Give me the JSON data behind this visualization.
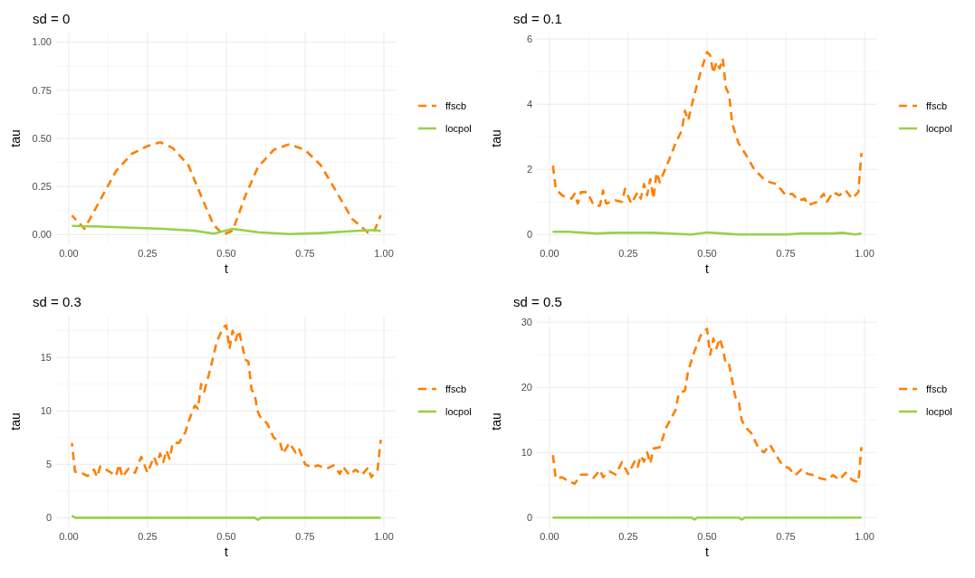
{
  "chart_data": [
    {
      "type": "line",
      "title": "sd = 0",
      "xlabel": "t",
      "ylabel": "tau",
      "xlim": [
        -0.04,
        1.04
      ],
      "ylim": [
        -0.05,
        1.05
      ],
      "xticks": [
        {
          "value": 0,
          "label": "0.00"
        },
        {
          "value": 0.25,
          "label": "0.25"
        },
        {
          "value": 0.5,
          "label": "0.50"
        },
        {
          "value": 0.75,
          "label": "0.75"
        },
        {
          "value": 1,
          "label": "1.00"
        }
      ],
      "yticks": [
        {
          "value": 0,
          "label": "0.00"
        },
        {
          "value": 0.25,
          "label": "0.25"
        },
        {
          "value": 0.5,
          "label": "0.50"
        },
        {
          "value": 0.75,
          "label": "0.75"
        },
        {
          "value": 1,
          "label": "1.00"
        }
      ],
      "grid": true,
      "legend": "right",
      "series": [
        {
          "name": "ffscb",
          "color": "#ff7f00",
          "line_style": "dashed",
          "x": [
            0.01,
            0.05,
            0.1,
            0.15,
            0.2,
            0.25,
            0.29,
            0.33,
            0.38,
            0.42,
            0.46,
            0.49,
            0.52,
            0.56,
            0.6,
            0.65,
            0.7,
            0.75,
            0.8,
            0.85,
            0.9,
            0.95,
            0.97,
            0.99
          ],
          "values": [
            0.1,
            0.03,
            0.18,
            0.33,
            0.42,
            0.46,
            0.48,
            0.45,
            0.36,
            0.2,
            0.05,
            0.0,
            0.02,
            0.2,
            0.35,
            0.44,
            0.47,
            0.44,
            0.36,
            0.22,
            0.08,
            0.01,
            0.02,
            0.1
          ]
        },
        {
          "name": "locpol",
          "color": "#99d04a",
          "line_style": "solid",
          "x": [
            0.01,
            0.1,
            0.2,
            0.3,
            0.4,
            0.46,
            0.52,
            0.6,
            0.7,
            0.8,
            0.9,
            0.97,
            0.99
          ],
          "values": [
            0.045,
            0.042,
            0.036,
            0.03,
            0.02,
            0.005,
            0.03,
            0.012,
            0.003,
            0.008,
            0.018,
            0.024,
            0.018
          ]
        }
      ]
    },
    {
      "type": "line",
      "title": "sd = 0.1",
      "xlabel": "t",
      "ylabel": "tau",
      "xlim": [
        -0.04,
        1.04
      ],
      "ylim": [
        -0.3,
        6.2
      ],
      "xticks": [
        {
          "value": 0,
          "label": "0.00"
        },
        {
          "value": 0.25,
          "label": "0.25"
        },
        {
          "value": 0.5,
          "label": "0.50"
        },
        {
          "value": 0.75,
          "label": "0.75"
        },
        {
          "value": 1,
          "label": "1.00"
        }
      ],
      "yticks": [
        0,
        2,
        4,
        6
      ],
      "grid": true,
      "legend": "right",
      "series": [
        {
          "name": "ffscb",
          "color": "#ff7f00",
          "line_style": "dashed",
          "x": [
            0.01,
            0.02,
            0.04,
            0.07,
            0.08,
            0.09,
            0.1,
            0.12,
            0.14,
            0.16,
            0.17,
            0.18,
            0.21,
            0.23,
            0.24,
            0.26,
            0.28,
            0.29,
            0.3,
            0.31,
            0.32,
            0.33,
            0.34,
            0.35,
            0.38,
            0.4,
            0.42,
            0.43,
            0.44,
            0.46,
            0.48,
            0.5,
            0.51,
            0.52,
            0.53,
            0.54,
            0.55,
            0.56,
            0.57,
            0.58,
            0.6,
            0.62,
            0.65,
            0.68,
            0.7,
            0.72,
            0.75,
            0.77,
            0.79,
            0.81,
            0.82,
            0.85,
            0.87,
            0.88,
            0.9,
            0.92,
            0.94,
            0.96,
            0.98,
            0.99
          ],
          "values": [
            2.2,
            1.4,
            1.2,
            1.1,
            1.25,
            0.95,
            1.3,
            1.3,
            0.9,
            0.88,
            1.35,
            0.95,
            1.05,
            1.0,
            1.4,
            0.95,
            1.3,
            1.1,
            1.55,
            1.2,
            1.7,
            1.1,
            1.9,
            1.6,
            2.3,
            2.8,
            3.2,
            3.8,
            3.5,
            4.3,
            5.0,
            5.6,
            5.5,
            4.95,
            5.3,
            5.1,
            5.4,
            4.5,
            4.3,
            3.4,
            2.8,
            2.5,
            2.0,
            1.7,
            1.6,
            1.55,
            1.2,
            1.25,
            1.05,
            1.1,
            0.9,
            1.0,
            1.25,
            1.0,
            1.3,
            1.2,
            1.35,
            1.1,
            1.3,
            2.5
          ]
        },
        {
          "name": "locpol",
          "color": "#99d04a",
          "line_style": "solid",
          "x": [
            0.01,
            0.06,
            0.15,
            0.2,
            0.33,
            0.45,
            0.5,
            0.55,
            0.6,
            0.75,
            0.8,
            0.9,
            0.93,
            0.97,
            0.99
          ],
          "values": [
            0.08,
            0.08,
            0.03,
            0.05,
            0.05,
            0.0,
            0.06,
            0.03,
            0.0,
            0.0,
            0.03,
            0.03,
            0.05,
            0.0,
            0.03
          ]
        }
      ]
    },
    {
      "type": "line",
      "title": "sd = 0.3",
      "xlabel": "t",
      "ylabel": "tau",
      "xlim": [
        -0.04,
        1.04
      ],
      "ylim": [
        -0.9,
        18.9
      ],
      "xticks": [
        {
          "value": 0,
          "label": "0.00"
        },
        {
          "value": 0.25,
          "label": "0.25"
        },
        {
          "value": 0.5,
          "label": "0.50"
        },
        {
          "value": 0.75,
          "label": "0.75"
        },
        {
          "value": 1,
          "label": "1.00"
        }
      ],
      "yticks": [
        0,
        5,
        10,
        15
      ],
      "grid": true,
      "legend": "right",
      "series": [
        {
          "name": "ffscb",
          "color": "#ff7f00",
          "line_style": "dashed",
          "x": [
            0.01,
            0.02,
            0.04,
            0.06,
            0.08,
            0.09,
            0.1,
            0.13,
            0.15,
            0.16,
            0.17,
            0.19,
            0.21,
            0.23,
            0.25,
            0.27,
            0.28,
            0.29,
            0.3,
            0.31,
            0.32,
            0.33,
            0.35,
            0.37,
            0.38,
            0.4,
            0.41,
            0.42,
            0.43,
            0.45,
            0.47,
            0.49,
            0.5,
            0.51,
            0.52,
            0.53,
            0.54,
            0.55,
            0.56,
            0.57,
            0.58,
            0.59,
            0.6,
            0.61,
            0.63,
            0.65,
            0.67,
            0.68,
            0.7,
            0.72,
            0.73,
            0.75,
            0.77,
            0.79,
            0.82,
            0.84,
            0.86,
            0.87,
            0.89,
            0.91,
            0.93,
            0.95,
            0.96,
            0.98,
            0.99
          ],
          "values": [
            7.0,
            4.3,
            4.2,
            3.9,
            4.5,
            3.8,
            4.8,
            4.3,
            3.9,
            5.0,
            3.8,
            4.6,
            4.2,
            5.7,
            4.2,
            5.7,
            5.0,
            6.0,
            5.2,
            6.3,
            5.5,
            7.0,
            7.0,
            8.0,
            9.0,
            10.5,
            10.2,
            12.5,
            11.8,
            14.0,
            16.5,
            17.8,
            18.0,
            15.8,
            17.5,
            16.6,
            17.5,
            16.2,
            14.8,
            14.6,
            12.0,
            11.5,
            9.9,
            9.3,
            8.8,
            7.5,
            7.1,
            6.0,
            7.0,
            6.1,
            6.5,
            5.0,
            4.7,
            4.9,
            4.6,
            4.9,
            4.1,
            4.8,
            4.0,
            4.5,
            4.0,
            4.7,
            3.8,
            4.5,
            7.3
          ]
        },
        {
          "name": "locpol",
          "color": "#99d04a",
          "line_style": "solid",
          "x": [
            0.01,
            0.02,
            0.59,
            0.6,
            0.61,
            0.99
          ],
          "values": [
            0.2,
            0.0,
            0.0,
            -0.2,
            0.0,
            0.0
          ]
        }
      ]
    },
    {
      "type": "line",
      "title": "sd = 0.5",
      "xlabel": "t",
      "ylabel": "tau",
      "xlim": [
        -0.04,
        1.04
      ],
      "ylim": [
        -1.5,
        31
      ],
      "xticks": [
        {
          "value": 0,
          "label": "0.00"
        },
        {
          "value": 0.25,
          "label": "0.25"
        },
        {
          "value": 0.5,
          "label": "0.50"
        },
        {
          "value": 0.75,
          "label": "0.75"
        },
        {
          "value": 1,
          "label": "1.00"
        }
      ],
      "yticks": [
        0,
        10,
        20,
        30
      ],
      "grid": true,
      "legend": "right",
      "series": [
        {
          "name": "ffscb",
          "color": "#ff7f00",
          "line_style": "dashed",
          "x": [
            0.01,
            0.02,
            0.04,
            0.06,
            0.08,
            0.1,
            0.12,
            0.14,
            0.16,
            0.17,
            0.19,
            0.21,
            0.23,
            0.25,
            0.27,
            0.28,
            0.29,
            0.3,
            0.31,
            0.32,
            0.33,
            0.35,
            0.37,
            0.4,
            0.41,
            0.43,
            0.44,
            0.46,
            0.48,
            0.5,
            0.51,
            0.52,
            0.53,
            0.54,
            0.55,
            0.56,
            0.57,
            0.59,
            0.6,
            0.61,
            0.62,
            0.64,
            0.66,
            0.68,
            0.7,
            0.72,
            0.74,
            0.76,
            0.78,
            0.8,
            0.82,
            0.84,
            0.86,
            0.88,
            0.9,
            0.92,
            0.94,
            0.96,
            0.98,
            0.99
          ],
          "values": [
            10.0,
            6.0,
            6.2,
            5.6,
            5.2,
            6.6,
            6.6,
            6.1,
            7.3,
            6.2,
            7.1,
            6.6,
            8.5,
            6.7,
            8.6,
            7.8,
            9.5,
            8.6,
            10.0,
            8.3,
            10.6,
            10.8,
            13.8,
            16.5,
            19.0,
            19.5,
            22.5,
            25.5,
            28.0,
            29.0,
            25.0,
            27.5,
            26.0,
            27.5,
            26.0,
            23.5,
            23.5,
            18.5,
            18.0,
            15.0,
            14.0,
            13.0,
            11.0,
            10.0,
            11.2,
            9.5,
            8.0,
            7.6,
            6.5,
            7.4,
            6.7,
            6.5,
            6.0,
            5.8,
            6.5,
            5.8,
            6.9,
            5.8,
            5.4,
            10.8
          ]
        },
        {
          "name": "locpol",
          "color": "#99d04a",
          "line_style": "solid",
          "x": [
            0.01,
            0.45,
            0.46,
            0.47,
            0.6,
            0.61,
            0.62,
            0.99
          ],
          "values": [
            0.0,
            0.0,
            -0.3,
            0.0,
            0.0,
            -0.3,
            0.0,
            0.0
          ]
        }
      ]
    }
  ]
}
